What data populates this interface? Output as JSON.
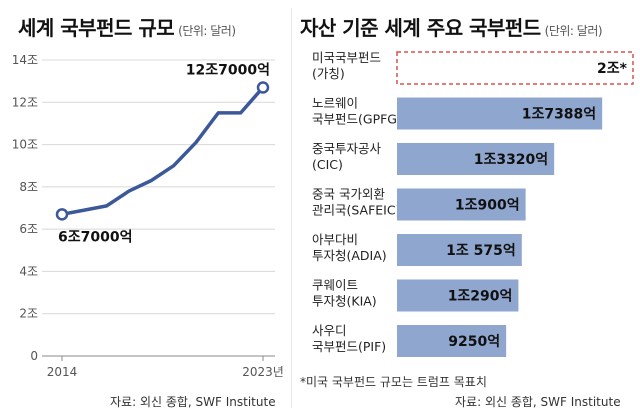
{
  "left": {
    "title": "세계 국부펀드 규모",
    "unit": "(단위: 달러)",
    "source": "자료: 외신 종합, SWF Institute"
  },
  "right": {
    "title": "자산 기준 세계 주요 국부펀드",
    "unit": "(단위: 달러)",
    "footnote": "*미국 국부펀드 규모는 트럼프 목표치",
    "source": "자료: 외신 종합, SWF Institute"
  },
  "colors": {
    "line": "#3b5998",
    "bar": "#8fa6cf",
    "dashed": "#d9534f",
    "grid": "#d8d8d8"
  },
  "chart_data": [
    {
      "type": "line",
      "title": "세계 국부펀드 규모",
      "unit": "(단위: 달러)",
      "x": [
        2014,
        2015,
        2016,
        2017,
        2018,
        2019,
        2020,
        2021,
        2022,
        2023
      ],
      "values": [
        6.7,
        6.9,
        7.1,
        7.8,
        8.3,
        9.0,
        10.1,
        11.5,
        11.5,
        12.7
      ],
      "y_ticks": [
        "0",
        "2조",
        "4조",
        "6조",
        "8조",
        "10조",
        "12조",
        "14조"
      ],
      "ylim": [
        0,
        14
      ],
      "x_tick_labels": [
        "2014",
        "2023년"
      ],
      "annotations": [
        "6조7000억",
        "12조7000억"
      ],
      "grid": true
    },
    {
      "type": "bar",
      "orientation": "horizontal",
      "title": "자산 기준 세계 주요 국부펀드",
      "unit": "(단위: 달러)",
      "categories": [
        [
          "미국국부펀드",
          "(가칭)"
        ],
        [
          "노르웨이",
          "국부펀드(GPFG)"
        ],
        [
          "중국투자공사",
          "(CIC)"
        ],
        [
          "중국 국가외환",
          "관리국(SAFEIC)"
        ],
        [
          "아부다비",
          "투자청(ADIA)"
        ],
        [
          "쿠웨이트",
          "투자청(KIA)"
        ],
        [
          "사우디",
          "국부펀드(PIF)"
        ]
      ],
      "values": [
        2.0,
        1.7388,
        1.332,
        1.09,
        1.0575,
        1.029,
        0.925
      ],
      "value_labels": [
        "2조*",
        "1조7388억",
        "1조3320억",
        "1조900억",
        "1조 575억",
        "1조290억",
        "9250억"
      ],
      "styles": [
        "dashed",
        "solid",
        "solid",
        "solid",
        "solid",
        "solid",
        "solid"
      ]
    }
  ]
}
